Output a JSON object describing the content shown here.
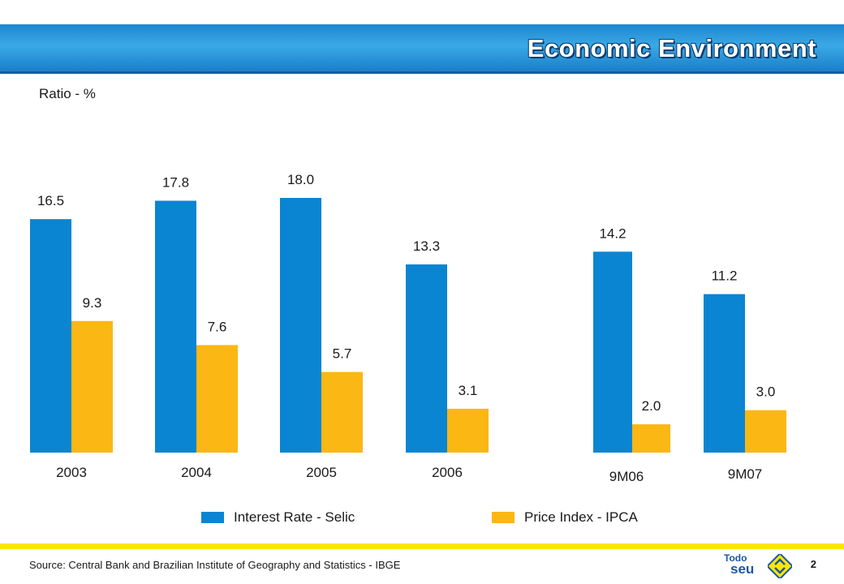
{
  "header": {
    "title": "Economic Environment"
  },
  "chart_data": {
    "type": "bar",
    "ylabel": "Ratio - %",
    "categories": [
      "2003",
      "2004",
      "2005",
      "2006",
      "9M06",
      "9M07"
    ],
    "series": [
      {
        "name": "Interest Rate - Selic",
        "color": "#0a85d2",
        "values": [
          16.5,
          17.8,
          18.0,
          13.3,
          14.2,
          11.2
        ]
      },
      {
        "name": "Price Index - IPCA",
        "color": "#fbb714",
        "values": [
          9.3,
          7.6,
          5.7,
          3.1,
          2.0,
          3.0
        ]
      }
    ],
    "data_labels": [
      [
        "16.5",
        "17.8",
        "18.0",
        "13.3",
        "14.2",
        "11.2"
      ],
      [
        "9.3",
        "7.6",
        "5.7",
        "3.1",
        "2.0",
        "3.0"
      ]
    ],
    "ylim": [
      0,
      18.0
    ],
    "grid": false,
    "legend_position": "bottom"
  },
  "footer": {
    "source": "Source: Central Bank and Brazilian Institute of Geography and Statistics - IBGE",
    "page_number": "2",
    "brand_line1": "Todo",
    "brand_line2": "seu",
    "accent_color": "#ffe600",
    "brand_color": "#1a57a6"
  }
}
